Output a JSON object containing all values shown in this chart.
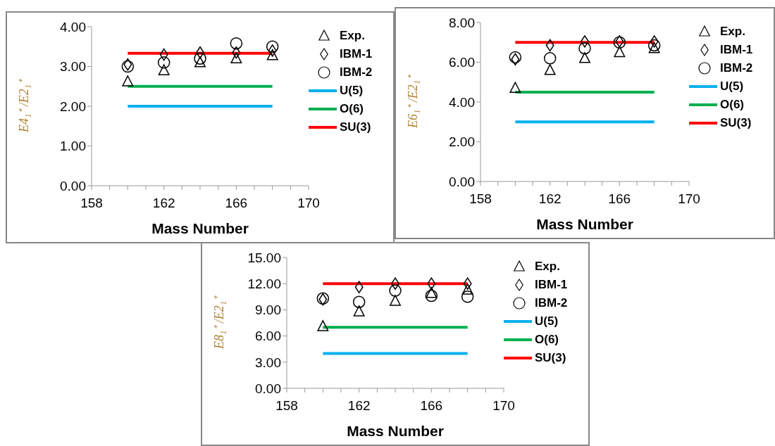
{
  "chart_data": [
    {
      "type": "scatter",
      "ylabel": "E4₁⁺ /E2₁⁺",
      "xlabel": "Mass Number",
      "legend": "right",
      "xlim": [
        158,
        170
      ],
      "ylim": [
        0,
        4
      ],
      "xticks": [
        158,
        {
          "value": 159,
          "label": null
        },
        {
          "value": 160,
          "label": null
        },
        {
          "value": 161,
          "label": null
        },
        162,
        {
          "value": 163,
          "label": null
        },
        {
          "value": 164,
          "label": null
        },
        {
          "value": 165,
          "label": null
        },
        166,
        {
          "value": 167,
          "label": null
        },
        {
          "value": 168,
          "label": null
        },
        {
          "value": 169,
          "label": null
        },
        170
      ],
      "yticks": [
        {
          "value": 0,
          "label": "0.00"
        },
        {
          "value": 1,
          "label": "1.00"
        },
        {
          "value": 2,
          "label": "2.00"
        },
        {
          "value": 3,
          "label": "3.00"
        },
        {
          "value": 4,
          "label": "4.00"
        }
      ],
      "series": [
        {
          "name": "Exp.",
          "marker": "triangle",
          "color": "#000000",
          "x": [
            160,
            162,
            164,
            166,
            168
          ],
          "values": [
            2.62,
            2.9,
            3.1,
            3.2,
            3.28
          ]
        },
        {
          "name": "IBM-1",
          "marker": "diamond",
          "color": "#000000",
          "x": [
            160,
            162,
            164,
            166,
            168
          ],
          "values": [
            3.05,
            3.3,
            3.35,
            3.35,
            3.4
          ]
        },
        {
          "name": "IBM-2",
          "marker": "circle",
          "color": "#000000",
          "x": [
            160,
            162,
            164,
            166,
            168
          ],
          "values": [
            3.0,
            3.1,
            3.2,
            3.58,
            3.5
          ]
        },
        {
          "name": "U(5)",
          "type": "line",
          "marker": "none",
          "color": "#00b0f0",
          "x": [
            160,
            168
          ],
          "values": [
            2.0,
            2.0
          ]
        },
        {
          "name": "O(6)",
          "type": "line",
          "marker": "none",
          "color": "#00b050",
          "x": [
            160,
            168
          ],
          "values": [
            2.5,
            2.5
          ]
        },
        {
          "name": "SU(3)",
          "type": "line",
          "marker": "none",
          "color": "#ff0000",
          "x": [
            160,
            168
          ],
          "values": [
            3.33,
            3.33
          ]
        }
      ]
    },
    {
      "type": "scatter",
      "ylabel": "E6₁⁺ /E2₁⁺",
      "xlabel": "Mass Number",
      "legend": "right",
      "xlim": [
        158,
        170
      ],
      "ylim": [
        0,
        8
      ],
      "xticks": [
        158,
        {
          "value": 159,
          "label": null
        },
        {
          "value": 160,
          "label": null
        },
        {
          "value": 161,
          "label": null
        },
        162,
        {
          "value": 163,
          "label": null
        },
        {
          "value": 164,
          "label": null
        },
        {
          "value": 165,
          "label": null
        },
        166,
        {
          "value": 167,
          "label": null
        },
        {
          "value": 168,
          "label": null
        },
        {
          "value": 169,
          "label": null
        },
        170
      ],
      "yticks": [
        {
          "value": 0,
          "label": "0.00"
        },
        {
          "value": 2,
          "label": "2.00"
        },
        {
          "value": 4,
          "label": "4.00"
        },
        {
          "value": 6,
          "label": "6.00"
        },
        {
          "value": 8,
          "label": "8.00"
        }
      ],
      "series": [
        {
          "name": "Exp.",
          "marker": "triangle",
          "color": "#000000",
          "x": [
            160,
            162,
            164,
            166,
            168
          ],
          "values": [
            4.7,
            5.6,
            6.2,
            6.5,
            6.7
          ]
        },
        {
          "name": "IBM-1",
          "marker": "diamond",
          "color": "#000000",
          "x": [
            160,
            162,
            164,
            166,
            168
          ],
          "values": [
            6.15,
            6.85,
            7.05,
            7.05,
            7.05
          ]
        },
        {
          "name": "IBM-2",
          "marker": "circle",
          "color": "#000000",
          "x": [
            160,
            162,
            164,
            166,
            168
          ],
          "values": [
            6.25,
            6.2,
            6.7,
            7.0,
            6.85
          ]
        },
        {
          "name": "U(5)",
          "type": "line",
          "marker": "none",
          "color": "#00b0f0",
          "x": [
            160,
            168
          ],
          "values": [
            3.0,
            3.0
          ]
        },
        {
          "name": "O(6)",
          "type": "line",
          "marker": "none",
          "color": "#00b050",
          "x": [
            160,
            168
          ],
          "values": [
            4.5,
            4.5
          ]
        },
        {
          "name": "SU(3)",
          "type": "line",
          "marker": "none",
          "color": "#ff0000",
          "x": [
            160,
            168
          ],
          "values": [
            7.0,
            7.0
          ]
        }
      ]
    },
    {
      "type": "scatter",
      "ylabel": "E8₁⁺ /E2₁⁺",
      "xlabel": "Mass Number",
      "legend": "right",
      "xlim": [
        158,
        170
      ],
      "ylim": [
        0,
        15
      ],
      "xticks": [
        158,
        {
          "value": 159,
          "label": null
        },
        {
          "value": 160,
          "label": null
        },
        {
          "value": 161,
          "label": null
        },
        162,
        {
          "value": 163,
          "label": null
        },
        {
          "value": 164,
          "label": null
        },
        {
          "value": 165,
          "label": null
        },
        166,
        {
          "value": 167,
          "label": null
        },
        {
          "value": 168,
          "label": null
        },
        {
          "value": 169,
          "label": null
        },
        170
      ],
      "yticks": [
        {
          "value": 0,
          "label": "0.00"
        },
        {
          "value": 3,
          "label": "3.00"
        },
        {
          "value": 6,
          "label": "6.00"
        },
        {
          "value": 9,
          "label": "9.00"
        },
        {
          "value": 12,
          "label": "12.00"
        },
        {
          "value": 15,
          "label": "15.00"
        }
      ],
      "series": [
        {
          "name": "Exp.",
          "marker": "triangle",
          "color": "#000000",
          "x": [
            160,
            162,
            164,
            166,
            168
          ],
          "values": [
            7.1,
            8.8,
            10.0,
            10.9,
            11.3
          ]
        },
        {
          "name": "IBM-1",
          "marker": "diamond",
          "color": "#000000",
          "x": [
            160,
            162,
            164,
            166,
            168
          ],
          "values": [
            10.2,
            11.6,
            12.0,
            12.0,
            12.0
          ]
        },
        {
          "name": "IBM-2",
          "marker": "circle",
          "color": "#000000",
          "x": [
            160,
            162,
            164,
            166,
            168
          ],
          "values": [
            10.3,
            9.9,
            11.2,
            10.6,
            10.5
          ]
        },
        {
          "name": "U(5)",
          "type": "line",
          "marker": "none",
          "color": "#00b0f0",
          "x": [
            160,
            168
          ],
          "values": [
            4.0,
            4.0
          ]
        },
        {
          "name": "O(6)",
          "type": "line",
          "marker": "none",
          "color": "#00b050",
          "x": [
            160,
            168
          ],
          "values": [
            7.0,
            7.0
          ]
        },
        {
          "name": "SU(3)",
          "type": "line",
          "marker": "none",
          "color": "#ff0000",
          "x": [
            160,
            168
          ],
          "values": [
            12.0,
            12.0
          ]
        }
      ]
    }
  ]
}
